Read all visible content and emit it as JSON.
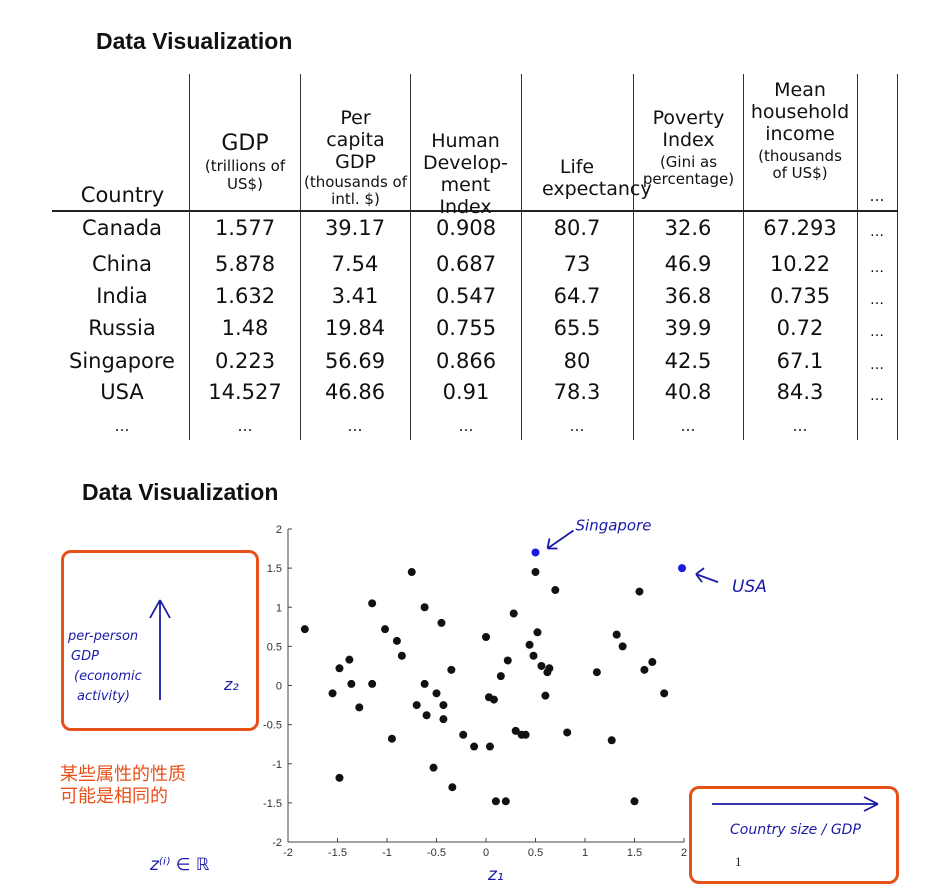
{
  "titles": {
    "top": "Data Visualization",
    "bottom": "Data Visualization"
  },
  "table": {
    "headers": {
      "country": "Country",
      "gdp_main": "GDP",
      "gdp_sub": "(trillions of US$)",
      "pcgdp_main": "Per capita GDP",
      "pcgdp_sub": "(thousands of intl. $)",
      "hdi": "Human Develop- ment Index",
      "life": "Life expectancy",
      "poverty_main": "Poverty Index",
      "poverty_sub": "(Gini as percentage)",
      "income_main": "Mean household income",
      "income_sub": "(thousands of US$)",
      "more": "…"
    },
    "rows": [
      [
        "Canada",
        "1.577",
        "39.17",
        "0.908",
        "80.7",
        "32.6",
        "67.293",
        "…"
      ],
      [
        "China",
        "5.878",
        "7.54",
        "0.687",
        "73",
        "46.9",
        "10.22",
        "…"
      ],
      [
        "India",
        "1.632",
        "3.41",
        "0.547",
        "64.7",
        "36.8",
        "0.735",
        "…"
      ],
      [
        "Russia",
        "1.48",
        "19.84",
        "0.755",
        "65.5",
        "39.9",
        "0.72",
        "…"
      ],
      [
        "Singapore",
        "0.223",
        "56.69",
        "0.866",
        "80",
        "42.5",
        "67.1",
        "…"
      ],
      [
        "USA",
        "14.527",
        "46.86",
        "0.91",
        "78.3",
        "40.8",
        "84.3",
        "…"
      ],
      [
        "…",
        "…",
        "…",
        "…",
        "…",
        "…",
        "…",
        ""
      ]
    ]
  },
  "chart_data": {
    "type": "scatter",
    "xlim": [
      -2,
      2
    ],
    "ylim": [
      -2,
      2
    ],
    "x_ticks": [
      "-2",
      "-1.5",
      "-1",
      "-0.5",
      "0",
      "0.5",
      "1",
      "1.5",
      "2"
    ],
    "y_ticks": [
      "2",
      "1.5",
      "1",
      "0.5",
      "0",
      "-0.5",
      "-1",
      "-1.5",
      "-2"
    ],
    "points": [
      [
        -1.83,
        0.72
      ],
      [
        -1.55,
        -0.1
      ],
      [
        -1.48,
        0.22
      ],
      [
        -1.48,
        -1.18
      ],
      [
        -1.38,
        0.33
      ],
      [
        -1.36,
        0.02
      ],
      [
        -1.28,
        -0.28
      ],
      [
        -1.15,
        1.05
      ],
      [
        -1.15,
        0.02
      ],
      [
        -1.02,
        0.72
      ],
      [
        -0.95,
        -0.68
      ],
      [
        -0.9,
        0.57
      ],
      [
        -0.85,
        0.38
      ],
      [
        -0.75,
        1.45
      ],
      [
        -0.7,
        -0.25
      ],
      [
        -0.62,
        1.0
      ],
      [
        -0.62,
        0.02
      ],
      [
        -0.6,
        -0.38
      ],
      [
        -0.53,
        -1.05
      ],
      [
        -0.5,
        -0.1
      ],
      [
        -0.45,
        0.8
      ],
      [
        -0.43,
        -0.25
      ],
      [
        -0.43,
        -0.43
      ],
      [
        -0.35,
        0.2
      ],
      [
        -0.34,
        -1.3
      ],
      [
        -0.23,
        -0.63
      ],
      [
        -0.12,
        -0.78
      ],
      [
        0.0,
        0.62
      ],
      [
        0.03,
        -0.15
      ],
      [
        0.04,
        -0.78
      ],
      [
        0.08,
        -0.18
      ],
      [
        0.1,
        -1.48
      ],
      [
        0.15,
        0.12
      ],
      [
        0.2,
        -1.48
      ],
      [
        0.22,
        0.32
      ],
      [
        0.28,
        0.92
      ],
      [
        0.3,
        -0.58
      ],
      [
        0.36,
        -0.63
      ],
      [
        0.4,
        -0.63
      ],
      [
        0.44,
        0.52
      ],
      [
        0.48,
        0.38
      ],
      [
        0.5,
        1.45
      ],
      [
        0.52,
        0.68
      ],
      [
        0.56,
        0.25
      ],
      [
        0.6,
        -0.13
      ],
      [
        0.62,
        0.17
      ],
      [
        0.64,
        0.22
      ],
      [
        0.7,
        1.22
      ],
      [
        0.82,
        -0.6
      ],
      [
        1.12,
        0.17
      ],
      [
        1.27,
        -0.7
      ],
      [
        1.32,
        0.65
      ],
      [
        1.38,
        0.5
      ],
      [
        1.5,
        -1.48
      ],
      [
        1.55,
        1.2
      ],
      [
        1.6,
        0.2
      ],
      [
        1.68,
        0.3
      ],
      [
        1.8,
        -0.1
      ]
    ],
    "highlighted": [
      {
        "label": "Singapore",
        "x": 0.5,
        "y": 1.7,
        "color": "#1a1ae0"
      },
      {
        "label": "USA",
        "x": 1.98,
        "y": 1.5,
        "color": "#1a1ae0"
      }
    ]
  },
  "annotations": {
    "y_axis_note": "per-person GDP (economic activity)",
    "z2": "z₂",
    "z1": "z₁",
    "x_axis_note": "Country size / GDP",
    "z_def": "z⁽ⁱ⁾ ∈ ℝ",
    "one": "1",
    "chinese_note": "某些属性的性质\n可能是相同的",
    "colors": {
      "orange": "#e8501a",
      "blue_ink": "#1a1aa8"
    }
  }
}
